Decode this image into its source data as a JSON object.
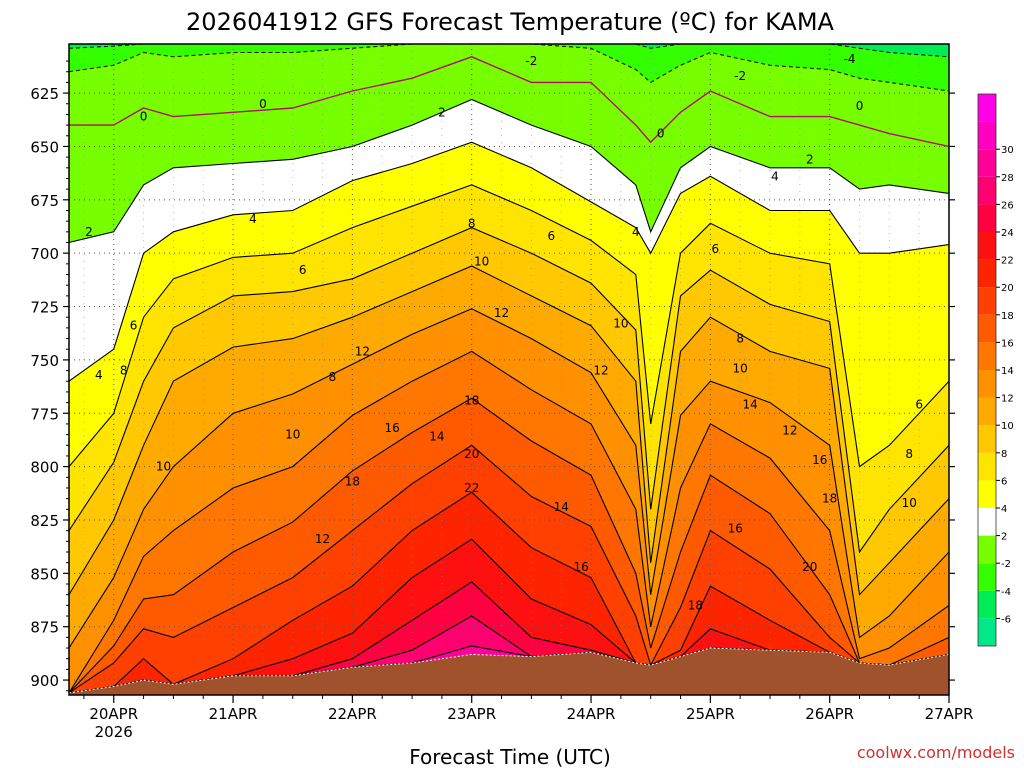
{
  "title": "2026041912 GFS Forecast Temperature (ºC) for KAMA",
  "xlabel": "Forecast Time (UTC)",
  "credit": "coolwx.com/models",
  "chart_data": {
    "type": "heatmap",
    "title": "2026041912 GFS Forecast Temperature (ºC) for KAMA",
    "xlabel": "Forecast Time (UTC)",
    "ylabel": "",
    "x_ticks": [
      {
        "value": 0,
        "label": "20APR",
        "sublabel": "2026"
      },
      {
        "value": 24,
        "label": "21APR"
      },
      {
        "value": 48,
        "label": "22APR"
      },
      {
        "value": 72,
        "label": "23APR"
      },
      {
        "value": 96,
        "label": "24APR"
      },
      {
        "value": 120,
        "label": "25APR"
      },
      {
        "value": 144,
        "label": "26APR"
      },
      {
        "value": 168,
        "label": "27APR"
      }
    ],
    "xlim": [
      -9,
      168
    ],
    "y_ticks": [
      625,
      650,
      675,
      700,
      725,
      750,
      775,
      800,
      825,
      850,
      875,
      900
    ],
    "ylim": [
      602,
      907
    ],
    "y_inverted": true,
    "grid": true,
    "colorbar": {
      "levels": [
        -8,
        -6,
        -4,
        -2,
        2,
        4,
        6,
        8,
        10,
        12,
        14,
        16,
        18,
        20,
        22,
        24,
        26,
        28,
        30,
        32
      ],
      "colors": [
        "#00e88a",
        "#00ee55",
        "#33ff00",
        "#77ff00",
        "#ffffff",
        "#ffff00",
        "#ffe400",
        "#ffc800",
        "#ffaa00",
        "#ff9000",
        "#ff7700",
        "#ff5a00",
        "#ff4000",
        "#ff2400",
        "#ff1010",
        "#ff0040",
        "#ff0070",
        "#ff0099",
        "#ff00c0",
        "#ff00e8"
      ],
      "labels": [
        "-6",
        "-4",
        "-2",
        "2",
        "4",
        "6",
        "8",
        "10",
        "12",
        "14",
        "16",
        "18",
        "20",
        "22",
        "24",
        "26",
        "28",
        "30"
      ]
    },
    "series_points": [
      -9,
      0,
      6,
      12,
      24,
      36,
      48,
      60,
      72,
      84,
      96,
      105,
      108,
      114,
      120,
      132,
      144,
      150,
      156,
      168
    ],
    "surface_pressure": [
      906,
      903,
      900,
      902,
      898,
      898,
      894,
      892,
      888,
      889,
      887,
      892,
      893,
      889,
      885,
      886,
      887,
      892,
      893,
      888
    ],
    "isotherm_pressure": [
      {
        "temp": 0,
        "values": [
          640,
          640,
          632,
          636,
          634,
          632,
          624,
          618,
          608,
          620,
          620,
          640,
          648,
          634,
          624,
          636,
          636,
          640,
          644,
          650
        ]
      },
      {
        "temp": 2,
        "values": [
          695,
          690,
          668,
          660,
          658,
          656,
          650,
          640,
          628,
          640,
          650,
          668,
          690,
          660,
          650,
          660,
          660,
          670,
          668,
          672
        ]
      },
      {
        "temp": 4,
        "values": [
          760,
          745,
          700,
          690,
          682,
          680,
          666,
          658,
          648,
          660,
          676,
          688,
          700,
          672,
          664,
          680,
          680,
          700,
          700,
          696
        ]
      },
      {
        "temp": 6,
        "values": [
          800,
          775,
          730,
          712,
          702,
          700,
          688,
          678,
          668,
          680,
          694,
          710,
          780,
          700,
          686,
          700,
          705,
          800,
          790,
          760
        ]
      },
      {
        "temp": 8,
        "values": [
          830,
          798,
          760,
          735,
          720,
          718,
          712,
          700,
          688,
          700,
          714,
          736,
          820,
          720,
          708,
          724,
          732,
          840,
          820,
          790
        ]
      },
      {
        "temp": 10,
        "values": [
          860,
          825,
          790,
          760,
          744,
          740,
          730,
          718,
          706,
          720,
          734,
          760,
          845,
          746,
          730,
          746,
          754,
          860,
          845,
          815
        ]
      },
      {
        "temp": 12,
        "values": [
          885,
          852,
          820,
          800,
          775,
          766,
          752,
          738,
          726,
          740,
          756,
          790,
          860,
          776,
          760,
          770,
          790,
          880,
          870,
          840
        ]
      },
      {
        "temp": 14,
        "values": [
          906,
          872,
          842,
          830,
          810,
          800,
          776,
          760,
          746,
          764,
          780,
          820,
          875,
          810,
          780,
          796,
          830,
          890,
          885,
          865
        ]
      },
      {
        "temp": 16,
        "values": [
          906,
          884,
          862,
          860,
          840,
          826,
          802,
          784,
          768,
          788,
          804,
          850,
          885,
          840,
          804,
          822,
          860,
          892,
          893,
          880
        ]
      },
      {
        "temp": 18,
        "values": [
          906,
          892,
          876,
          880,
          866,
          852,
          830,
          808,
          790,
          814,
          828,
          870,
          893,
          866,
          830,
          848,
          880,
          892,
          893,
          888
        ]
      },
      {
        "temp": 20,
        "values": [
          906,
          903,
          890,
          902,
          890,
          872,
          856,
          830,
          812,
          838,
          852,
          892,
          893,
          886,
          856,
          872,
          887,
          892,
          893,
          888
        ]
      },
      {
        "temp": 22,
        "values": [
          906,
          903,
          900,
          902,
          898,
          890,
          878,
          852,
          834,
          862,
          874,
          892,
          893,
          889,
          876,
          886,
          887,
          892,
          893,
          888
        ]
      },
      {
        "temp": 24,
        "values": [
          906,
          903,
          900,
          902,
          898,
          898,
          890,
          872,
          854,
          880,
          886,
          892,
          893,
          889,
          885,
          886,
          887,
          892,
          893,
          888
        ]
      },
      {
        "temp": 26,
        "values": [
          906,
          903,
          900,
          902,
          898,
          898,
          894,
          886,
          870,
          889,
          887,
          892,
          893,
          889,
          885,
          886,
          887,
          892,
          893,
          888
        ]
      },
      {
        "temp": 28,
        "values": [
          906,
          903,
          900,
          902,
          898,
          898,
          894,
          892,
          884,
          889,
          887,
          892,
          893,
          889,
          885,
          886,
          887,
          892,
          893,
          888
        ]
      }
    ],
    "cold_isotherm_pressure": [
      {
        "temp": -2,
        "values": [
          615,
          612,
          606,
          608,
          606,
          606,
          604,
          602,
          602,
          602,
          604,
          614,
          620,
          612,
          606,
          612,
          614,
          618,
          620,
          624
        ]
      },
      {
        "temp": -4,
        "values": [
          604,
          603,
          602,
          602,
          602,
          602,
          602,
          602,
          602,
          602,
          602,
          602,
          604,
          602,
          602,
          602,
          602,
          604,
          606,
          608
        ]
      }
    ],
    "contour_labels": [
      {
        "text": "-2",
        "x": 84,
        "y": 610
      },
      {
        "text": "-2",
        "x": 126,
        "y": 617
      },
      {
        "text": "-4",
        "x": 148,
        "y": 609
      },
      {
        "text": "2",
        "x": -5,
        "y": 690
      },
      {
        "text": "2",
        "x": 66,
        "y": 634
      },
      {
        "text": "2",
        "x": 140,
        "y": 656
      },
      {
        "text": "0",
        "x": 6,
        "y": 636
      },
      {
        "text": "0",
        "x": 30,
        "y": 630
      },
      {
        "text": "0",
        "x": 110,
        "y": 644
      },
      {
        "text": "0",
        "x": 150,
        "y": 631
      },
      {
        "text": "4",
        "x": -3,
        "y": 757
      },
      {
        "text": "4",
        "x": 28,
        "y": 684
      },
      {
        "text": "4",
        "x": 105,
        "y": 690
      },
      {
        "text": "4",
        "x": 133,
        "y": 664
      },
      {
        "text": "6",
        "x": 4,
        "y": 734
      },
      {
        "text": "6",
        "x": 38,
        "y": 708
      },
      {
        "text": "6",
        "x": 88,
        "y": 692
      },
      {
        "text": "6",
        "x": 121,
        "y": 698
      },
      {
        "text": "8",
        "x": 2,
        "y": 755
      },
      {
        "text": "8",
        "x": 44,
        "y": 758
      },
      {
        "text": "8",
        "x": 72,
        "y": 686
      },
      {
        "text": "8",
        "x": 126,
        "y": 740
      },
      {
        "text": "10",
        "x": 10,
        "y": 800
      },
      {
        "text": "10",
        "x": 36,
        "y": 785
      },
      {
        "text": "10",
        "x": 74,
        "y": 704
      },
      {
        "text": "10",
        "x": 102,
        "y": 733
      },
      {
        "text": "10",
        "x": 126,
        "y": 754
      },
      {
        "text": "12",
        "x": 50,
        "y": 746
      },
      {
        "text": "12",
        "x": 78,
        "y": 728
      },
      {
        "text": "12",
        "x": 98,
        "y": 755
      },
      {
        "text": "12",
        "x": 136,
        "y": 783
      },
      {
        "text": "12",
        "x": 42,
        "y": 834
      },
      {
        "text": "14",
        "x": 65,
        "y": 786
      },
      {
        "text": "14",
        "x": 90,
        "y": 819
      },
      {
        "text": "14",
        "x": 128,
        "y": 771
      },
      {
        "text": "16",
        "x": 56,
        "y": 782
      },
      {
        "text": "16",
        "x": 94,
        "y": 847
      },
      {
        "text": "16",
        "x": 125,
        "y": 829
      },
      {
        "text": "16",
        "x": 142,
        "y": 797
      },
      {
        "text": "18",
        "x": 48,
        "y": 807
      },
      {
        "text": "18",
        "x": 72,
        "y": 769
      },
      {
        "text": "18",
        "x": 117,
        "y": 865
      },
      {
        "text": "18",
        "x": 144,
        "y": 815
      },
      {
        "text": "20",
        "x": 72,
        "y": 794
      },
      {
        "text": "20",
        "x": 140,
        "y": 847
      },
      {
        "text": "22",
        "x": 72,
        "y": 810
      },
      {
        "text": "6",
        "x": 162,
        "y": 771
      },
      {
        "text": "8",
        "x": 160,
        "y": 794
      },
      {
        "text": "10",
        "x": 160,
        "y": 817
      }
    ]
  }
}
